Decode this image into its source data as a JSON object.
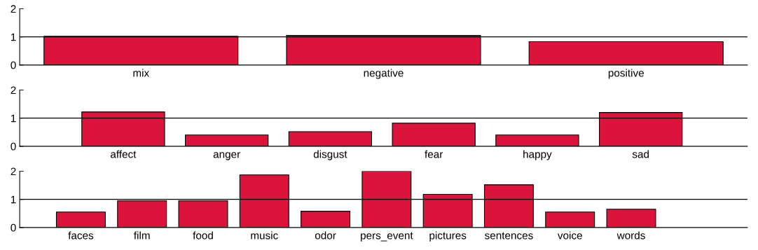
{
  "chart_data": [
    {
      "type": "bar",
      "categories": [
        "mix",
        "negative",
        "positive"
      ],
      "values": [
        1.02,
        1.05,
        0.83
      ],
      "color": "#dc143c",
      "ylim": [
        0,
        2
      ],
      "yticks": [
        0,
        1,
        2
      ],
      "ref_lines": [
        {
          "axis": "y",
          "value": 1,
          "color": "#000000"
        }
      ],
      "grid": false,
      "legend": false
    },
    {
      "type": "bar",
      "categories": [
        "affect",
        "anger",
        "disgust",
        "fear",
        "happy",
        "sad"
      ],
      "values": [
        1.22,
        0.4,
        0.52,
        0.82,
        0.4,
        1.2
      ],
      "color": "#dc143c",
      "ylim": [
        0,
        2
      ],
      "yticks": [
        0,
        1,
        2
      ],
      "ref_lines": [
        {
          "axis": "y",
          "value": 1,
          "color": "#000000"
        }
      ],
      "grid": false,
      "legend": false
    },
    {
      "type": "bar",
      "categories": [
        "faces",
        "film",
        "food",
        "music",
        "odor",
        "pers_event",
        "pictures",
        "sentences",
        "voice",
        "words"
      ],
      "values": [
        0.55,
        0.95,
        0.95,
        1.87,
        0.58,
        2.0,
        1.18,
        1.52,
        0.55,
        0.65
      ],
      "color": "#dc143c",
      "ylim": [
        0,
        2
      ],
      "yticks": [
        0,
        1,
        2
      ],
      "ref_lines": [
        {
          "axis": "y",
          "value": 1,
          "color": "#000000"
        }
      ],
      "grid": false,
      "legend": false
    }
  ]
}
